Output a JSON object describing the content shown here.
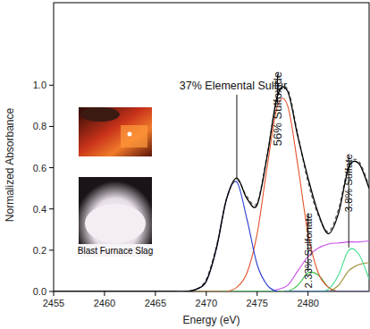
{
  "chart_data": {
    "type": "line",
    "x_label": "Energy (eV)",
    "y_label": "Normalized Absorbance",
    "xlim": [
      2455,
      2486
    ],
    "ylim": [
      0,
      1.4
    ],
    "xticks": [
      2455,
      2460,
      2465,
      2470,
      2475,
      2480
    ],
    "yticks": [
      {
        "value": 0,
        "label": "0.0"
      },
      {
        "value": 0.2,
        "label": "0.2"
      },
      {
        "value": 0.4,
        "label": "0.4"
      },
      {
        "value": 0.6,
        "label": "0.6"
      },
      {
        "value": 0.8,
        "label": "0.8"
      },
      {
        "value": 1.0,
        "label": "1.0"
      }
    ],
    "grid": false,
    "annotations": [
      "Blast Furnace Slag"
    ],
    "x": [
      2455,
      2456,
      2457,
      2458,
      2459,
      2460,
      2461,
      2462,
      2463,
      2464,
      2465,
      2466,
      2467,
      2468,
      2469,
      2470,
      2471,
      2472,
      2473,
      2474,
      2475,
      2476,
      2477,
      2478,
      2479,
      2480,
      2481,
      2482,
      2483,
      2484,
      2485,
      2486
    ],
    "series": [
      {
        "color": "#000000",
        "line_style": "solid",
        "values": [
          0,
          0,
          0,
          0,
          0,
          0,
          0,
          0,
          0,
          0,
          0,
          0,
          0,
          0,
          0.01,
          0.05,
          0.21,
          0.45,
          0.55,
          0.45,
          0.42,
          0.66,
          0.95,
          0.97,
          0.75,
          0.55,
          0.38,
          0.28,
          0.38,
          0.6,
          0.62,
          0.5
        ]
      },
      {
        "color": "#666666",
        "line_style": "dashed",
        "values": [
          0,
          0,
          0,
          0,
          0,
          0,
          0,
          0,
          0,
          0,
          0,
          0,
          0,
          0,
          0.01,
          0.06,
          0.22,
          0.45,
          0.54,
          0.46,
          0.43,
          0.67,
          0.94,
          0.98,
          0.76,
          0.53,
          0.37,
          0.29,
          0.4,
          0.61,
          0.63,
          0.51
        ]
      },
      {
        "name": "37% Elemental Sulfur",
        "color": "#2a3fd1",
        "line_style": "solid",
        "values": [
          0,
          0,
          0,
          0,
          0,
          0,
          0,
          0,
          0,
          0,
          0,
          0,
          0,
          0,
          0.01,
          0.05,
          0.21,
          0.45,
          0.53,
          0.35,
          0.13,
          0.03,
          0,
          0,
          0,
          0,
          0,
          0,
          0,
          0,
          0,
          0
        ]
      },
      {
        "name": "56% Sulfoxide",
        "color": "#e5522a",
        "line_style": "solid",
        "values": [
          0,
          0,
          0,
          0,
          0,
          0,
          0,
          0,
          0,
          0,
          0,
          0,
          0,
          0,
          0,
          0,
          0,
          0,
          0.02,
          0.09,
          0.28,
          0.61,
          0.9,
          0.9,
          0.61,
          0.28,
          0.09,
          0.02,
          0,
          0,
          0,
          0
        ]
      },
      {
        "name": "2.33% Sulfonate",
        "color": "#2fc13a",
        "line_style": "solid",
        "values": [
          0,
          0,
          0,
          0,
          0,
          0,
          0,
          0,
          0,
          0,
          0,
          0,
          0,
          0,
          0,
          0,
          0,
          0,
          0,
          0,
          0,
          0,
          0,
          0,
          0.03,
          0.09,
          0.08,
          0.02,
          0,
          0,
          0,
          0
        ]
      },
      {
        "name": "3.8% Sulfate",
        "color": "#3fdc8c",
        "line_style": "solid",
        "values": [
          0,
          0,
          0,
          0,
          0,
          0,
          0,
          0,
          0,
          0,
          0,
          0,
          0,
          0,
          0,
          0,
          0,
          0,
          0,
          0,
          0,
          0,
          0,
          0,
          0,
          0,
          0,
          0.01,
          0.08,
          0.2,
          0.18,
          0.06
        ]
      },
      {
        "color": "#c94be8",
        "line_style": "solid",
        "values": [
          0,
          0,
          0,
          0,
          0,
          0,
          0,
          0,
          0,
          0,
          0,
          0,
          0,
          0,
          0,
          0,
          0,
          0,
          0,
          0,
          0,
          0,
          0.01,
          0.03,
          0.1,
          0.17,
          0.21,
          0.23,
          0.235,
          0.24,
          0.24,
          0.245
        ]
      },
      {
        "color": "#9b8a2e",
        "line_style": "solid",
        "values": [
          0,
          0,
          0,
          0,
          0,
          0,
          0,
          0,
          0,
          0,
          0,
          0,
          0,
          0,
          0,
          0,
          0,
          0,
          0,
          0,
          0,
          0,
          0,
          0,
          0,
          0,
          0,
          0,
          0.03,
          0.1,
          0.13,
          0.14
        ]
      }
    ]
  }
}
